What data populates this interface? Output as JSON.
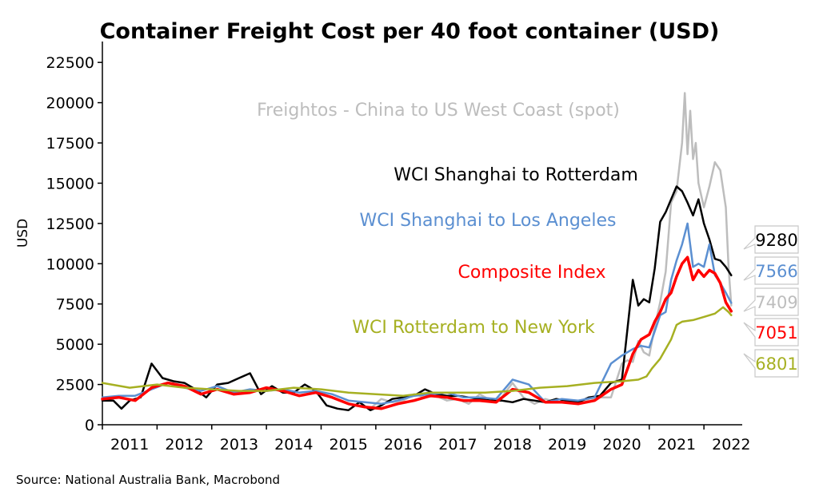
{
  "chart_data": {
    "type": "line",
    "title": "Container Freight Cost per 40 foot container (USD)",
    "ylabel": "USD",
    "source": "Source: National Australia Bank, Macrobond",
    "ylim": [
      0,
      23500
    ],
    "xlim": [
      2011.0,
      2022.7
    ],
    "yticks": [
      0,
      2500,
      5000,
      7500,
      10000,
      12500,
      15000,
      17500,
      20000,
      22500
    ],
    "xticks": [
      "2011",
      "2012",
      "2013",
      "2014",
      "2015",
      "2016",
      "2017",
      "2018",
      "2019",
      "2020",
      "2021",
      "2022"
    ],
    "series": [
      {
        "name": "Freightos - China to US West Coast (spot)",
        "color": "#bdbdbd",
        "end_value": "7409",
        "x": [
          2015.9,
          2016.1,
          2016.3,
          2016.5,
          2016.7,
          2016.9,
          2017.1,
          2017.3,
          2017.5,
          2017.7,
          2017.9,
          2018.1,
          2018.3,
          2018.5,
          2018.7,
          2018.9,
          2019.1,
          2019.3,
          2019.5,
          2019.7,
          2019.9,
          2020.1,
          2020.3,
          2020.5,
          2020.6,
          2020.7,
          2020.8,
          2020.9,
          2021.0,
          2021.1,
          2021.2,
          2021.3,
          2021.4,
          2021.5,
          2021.6,
          2021.65,
          2021.7,
          2021.75,
          2021.8,
          2021.85,
          2021.9,
          2022.0,
          2022.1,
          2022.2,
          2022.3,
          2022.4,
          2022.45,
          2022.5
        ],
        "y": [
          1000,
          1600,
          1400,
          1500,
          1900,
          1700,
          1800,
          1500,
          1600,
          1300,
          1900,
          1500,
          1700,
          2600,
          1700,
          1300,
          1600,
          1400,
          1500,
          1300,
          1600,
          1700,
          1700,
          3800,
          4000,
          3900,
          5200,
          4500,
          4300,
          6100,
          7600,
          9500,
          13800,
          14500,
          17500,
          20600,
          16800,
          19500,
          16500,
          17500,
          15000,
          13500,
          14800,
          16300,
          15800,
          13500,
          9800,
          7409
        ]
      },
      {
        "name": "WCI Shanghai to Rotterdam",
        "color": "#000000",
        "end_value": "9280",
        "x": [
          2011.0,
          2011.2,
          2011.35,
          2011.5,
          2011.7,
          2011.9,
          2012.1,
          2012.3,
          2012.5,
          2012.7,
          2012.9,
          2013.1,
          2013.3,
          2013.5,
          2013.7,
          2013.9,
          2014.1,
          2014.3,
          2014.5,
          2014.7,
          2014.9,
          2015.1,
          2015.3,
          2015.5,
          2015.7,
          2015.9,
          2016.1,
          2016.3,
          2016.5,
          2016.7,
          2016.9,
          2017.1,
          2017.3,
          2017.5,
          2017.7,
          2017.9,
          2018.1,
          2018.3,
          2018.5,
          2018.7,
          2018.9,
          2019.1,
          2019.3,
          2019.5,
          2019.7,
          2019.9,
          2020.1,
          2020.3,
          2020.5,
          2020.7,
          2020.8,
          2020.9,
          2021.0,
          2021.1,
          2021.2,
          2021.3,
          2021.4,
          2021.5,
          2021.6,
          2021.7,
          2021.8,
          2021.9,
          2022.0,
          2022.1,
          2022.2,
          2022.3,
          2022.4,
          2022.5
        ],
        "y": [
          1500,
          1500,
          1000,
          1500,
          1700,
          3800,
          2900,
          2700,
          2600,
          2200,
          1700,
          2500,
          2600,
          2900,
          3200,
          1900,
          2400,
          2000,
          2000,
          2500,
          2100,
          1200,
          1000,
          900,
          1400,
          900,
          1200,
          1600,
          1700,
          1800,
          2200,
          1900,
          1800,
          1800,
          1700,
          1600,
          1500,
          1500,
          1400,
          1600,
          1500,
          1400,
          1600,
          1500,
          1400,
          1700,
          1800,
          2600,
          2800,
          9000,
          7400,
          7800,
          7600,
          9700,
          12600,
          13200,
          14000,
          14800,
          14500,
          13800,
          13000,
          14000,
          12500,
          11500,
          10300,
          10200,
          9800,
          9280
        ]
      },
      {
        "name": "WCI Shanghai to Los Angeles",
        "color": "#5b8fd1",
        "end_value": "7566",
        "x": [
          2011.0,
          2011.3,
          2011.6,
          2011.9,
          2012.2,
          2012.5,
          2012.8,
          2013.1,
          2013.4,
          2013.7,
          2014.0,
          2014.3,
          2014.6,
          2014.9,
          2015.2,
          2015.5,
          2015.8,
          2016.1,
          2016.4,
          2016.7,
          2017.0,
          2017.3,
          2017.6,
          2017.9,
          2018.2,
          2018.5,
          2018.8,
          2019.1,
          2019.4,
          2019.7,
          2020.0,
          2020.3,
          2020.5,
          2020.7,
          2020.85,
          2021.0,
          2021.1,
          2021.2,
          2021.3,
          2021.4,
          2021.5,
          2021.6,
          2021.7,
          2021.8,
          2021.9,
          2022.0,
          2022.1,
          2022.2,
          2022.3,
          2022.4,
          2022.5
        ],
        "y": [
          1700,
          1800,
          1800,
          2200,
          2600,
          2300,
          2100,
          2400,
          2000,
          2200,
          2100,
          2200,
          2000,
          2100,
          1900,
          1500,
          1400,
          1300,
          1500,
          1800,
          1900,
          2000,
          1700,
          1700,
          1600,
          2800,
          2500,
          1400,
          1600,
          1500,
          1700,
          3800,
          4300,
          4700,
          4900,
          4800,
          5800,
          6800,
          7000,
          9000,
          10200,
          11200,
          12500,
          9800,
          10000,
          9800,
          11200,
          9300,
          8800,
          8200,
          7566
        ]
      },
      {
        "name": "Composite Index",
        "color": "#ff0000",
        "end_value": "7051",
        "x": [
          2011.0,
          2011.3,
          2011.6,
          2011.9,
          2012.2,
          2012.5,
          2012.8,
          2013.1,
          2013.4,
          2013.7,
          2014.0,
          2014.3,
          2014.6,
          2014.9,
          2015.2,
          2015.5,
          2015.8,
          2016.1,
          2016.4,
          2016.7,
          2017.0,
          2017.3,
          2017.6,
          2017.9,
          2018.2,
          2018.5,
          2018.8,
          2019.1,
          2019.4,
          2019.7,
          2020.0,
          2020.3,
          2020.5,
          2020.7,
          2020.85,
          2021.0,
          2021.1,
          2021.2,
          2021.3,
          2021.4,
          2021.5,
          2021.6,
          2021.7,
          2021.8,
          2021.9,
          2022.0,
          2022.1,
          2022.2,
          2022.3,
          2022.4,
          2022.5
        ],
        "y": [
          1600,
          1700,
          1500,
          2300,
          2600,
          2400,
          1900,
          2200,
          1900,
          2000,
          2300,
          2100,
          1800,
          2000,
          1700,
          1300,
          1100,
          1000,
          1300,
          1500,
          1800,
          1700,
          1500,
          1500,
          1400,
          2200,
          2000,
          1400,
          1400,
          1300,
          1500,
          2200,
          2500,
          4400,
          5300,
          5600,
          6400,
          7000,
          7800,
          8200,
          9200,
          10000,
          10400,
          9000,
          9600,
          9200,
          9600,
          9400,
          8800,
          7600,
          7051
        ]
      },
      {
        "name": "WCI Rotterdam to New York",
        "color": "#a6b022",
        "end_value": "6801",
        "x": [
          2011.0,
          2011.5,
          2012.0,
          2012.5,
          2013.0,
          2013.5,
          2014.0,
          2014.5,
          2015.0,
          2015.5,
          2016.0,
          2016.5,
          2017.0,
          2017.5,
          2018.0,
          2018.5,
          2019.0,
          2019.5,
          2020.0,
          2020.5,
          2020.8,
          2020.95,
          2021.05,
          2021.2,
          2021.4,
          2021.5,
          2021.6,
          2021.8,
          2022.0,
          2022.2,
          2022.35,
          2022.45,
          2022.5
        ],
        "y": [
          2600,
          2300,
          2500,
          2300,
          2200,
          2100,
          2100,
          2300,
          2200,
          2000,
          1900,
          1800,
          2000,
          2000,
          2000,
          2100,
          2300,
          2400,
          2600,
          2700,
          2800,
          3000,
          3500,
          4100,
          5300,
          6200,
          6400,
          6500,
          6700,
          6900,
          7300,
          7000,
          6801
        ]
      }
    ]
  }
}
